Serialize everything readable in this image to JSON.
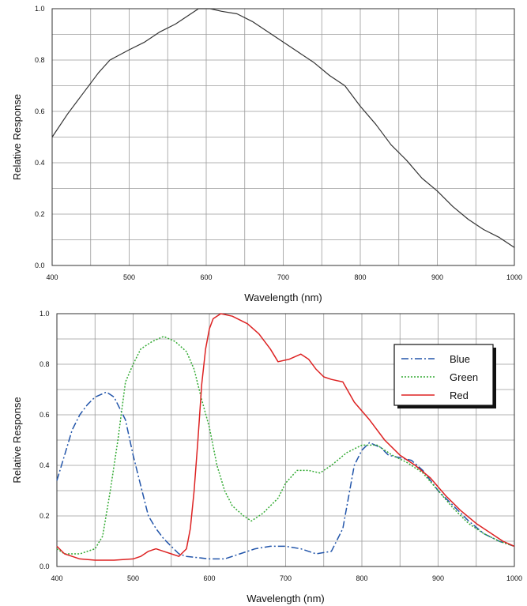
{
  "chart_data": [
    {
      "type": "line",
      "xlabel": "Wavelength (nm)",
      "ylabel": "Relative Response",
      "xlim": [
        400,
        1000
      ],
      "ylim": [
        0,
        1.0
      ],
      "x_ticks": [
        "400",
        "500",
        "600",
        "700",
        "800",
        "900",
        "1000"
      ],
      "y_ticks": [
        "0.0",
        "0.2",
        "0.4",
        "0.6",
        "0.8",
        "1.0"
      ],
      "grid": true,
      "series": [
        {
          "color": "#333333",
          "style": "solid",
          "points": [
            [
              400,
              0.5
            ],
            [
              420,
              0.59
            ],
            [
              440,
              0.67
            ],
            [
              460,
              0.75
            ],
            [
              475,
              0.8
            ],
            [
              500,
              0.84
            ],
            [
              520,
              0.87
            ],
            [
              540,
              0.91
            ],
            [
              560,
              0.94
            ],
            [
              580,
              0.98
            ],
            [
              590,
              1.0
            ],
            [
              605,
              1.0
            ],
            [
              620,
              0.99
            ],
            [
              640,
              0.98
            ],
            [
              660,
              0.95
            ],
            [
              680,
              0.91
            ],
            [
              700,
              0.87
            ],
            [
              720,
              0.83
            ],
            [
              740,
              0.79
            ],
            [
              760,
              0.74
            ],
            [
              780,
              0.7
            ],
            [
              800,
              0.62
            ],
            [
              820,
              0.55
            ],
            [
              840,
              0.47
            ],
            [
              860,
              0.41
            ],
            [
              880,
              0.34
            ],
            [
              900,
              0.29
            ],
            [
              920,
              0.23
            ],
            [
              940,
              0.18
            ],
            [
              960,
              0.14
            ],
            [
              980,
              0.11
            ],
            [
              1000,
              0.07
            ]
          ]
        }
      ]
    },
    {
      "type": "line",
      "xlabel": "Wavelength (nm)",
      "ylabel": "Relative Response",
      "xlim": [
        400,
        1000
      ],
      "ylim": [
        0,
        1.0
      ],
      "x_ticks": [
        "400",
        "500",
        "600",
        "700",
        "800",
        "900",
        "1000"
      ],
      "y_ticks": [
        "0.0",
        "0.2",
        "0.4",
        "0.6",
        "0.8",
        "1.0"
      ],
      "grid": true,
      "legend_position": "top-right",
      "series": [
        {
          "name": "Blue",
          "color": "#2255aa",
          "style": "dashdot",
          "points": [
            [
              400,
              0.34
            ],
            [
              410,
              0.44
            ],
            [
              420,
              0.54
            ],
            [
              430,
              0.6
            ],
            [
              440,
              0.64
            ],
            [
              450,
              0.67
            ],
            [
              465,
              0.69
            ],
            [
              475,
              0.67
            ],
            [
              480,
              0.64
            ],
            [
              490,
              0.58
            ],
            [
              500,
              0.44
            ],
            [
              510,
              0.32
            ],
            [
              520,
              0.2
            ],
            [
              530,
              0.15
            ],
            [
              540,
              0.11
            ],
            [
              560,
              0.05
            ],
            [
              570,
              0.04
            ],
            [
              600,
              0.03
            ],
            [
              620,
              0.03
            ],
            [
              640,
              0.05
            ],
            [
              660,
              0.07
            ],
            [
              680,
              0.08
            ],
            [
              700,
              0.08
            ],
            [
              720,
              0.07
            ],
            [
              740,
              0.05
            ],
            [
              760,
              0.06
            ],
            [
              775,
              0.15
            ],
            [
              790,
              0.4
            ],
            [
              800,
              0.46
            ],
            [
              810,
              0.49
            ],
            [
              825,
              0.47
            ],
            [
              835,
              0.44
            ],
            [
              850,
              0.43
            ],
            [
              865,
              0.42
            ],
            [
              880,
              0.38
            ],
            [
              900,
              0.3
            ],
            [
              920,
              0.24
            ],
            [
              940,
              0.18
            ],
            [
              960,
              0.13
            ],
            [
              980,
              0.1
            ],
            [
              1000,
              0.08
            ]
          ]
        },
        {
          "name": "Green",
          "color": "#33aa33",
          "style": "dotted",
          "points": [
            [
              400,
              0.07
            ],
            [
              410,
              0.05
            ],
            [
              420,
              0.05
            ],
            [
              430,
              0.05
            ],
            [
              450,
              0.07
            ],
            [
              460,
              0.12
            ],
            [
              470,
              0.3
            ],
            [
              480,
              0.5
            ],
            [
              490,
              0.73
            ],
            [
              500,
              0.8
            ],
            [
              510,
              0.86
            ],
            [
              525,
              0.89
            ],
            [
              540,
              0.91
            ],
            [
              555,
              0.89
            ],
            [
              570,
              0.85
            ],
            [
              580,
              0.78
            ],
            [
              590,
              0.66
            ],
            [
              600,
              0.55
            ],
            [
              610,
              0.4
            ],
            [
              620,
              0.3
            ],
            [
              630,
              0.24
            ],
            [
              645,
              0.2
            ],
            [
              655,
              0.18
            ],
            [
              670,
              0.21
            ],
            [
              690,
              0.27
            ],
            [
              700,
              0.33
            ],
            [
              715,
              0.38
            ],
            [
              730,
              0.38
            ],
            [
              745,
              0.37
            ],
            [
              760,
              0.4
            ],
            [
              780,
              0.45
            ],
            [
              800,
              0.48
            ],
            [
              820,
              0.48
            ],
            [
              840,
              0.44
            ],
            [
              860,
              0.41
            ],
            [
              880,
              0.37
            ],
            [
              900,
              0.3
            ],
            [
              920,
              0.23
            ],
            [
              940,
              0.17
            ],
            [
              960,
              0.13
            ],
            [
              980,
              0.1
            ],
            [
              1000,
              0.08
            ]
          ]
        },
        {
          "name": "Red",
          "color": "#dd2222",
          "style": "solid",
          "points": [
            [
              400,
              0.08
            ],
            [
              410,
              0.05
            ],
            [
              420,
              0.04
            ],
            [
              430,
              0.03
            ],
            [
              450,
              0.025
            ],
            [
              475,
              0.025
            ],
            [
              500,
              0.03
            ],
            [
              510,
              0.04
            ],
            [
              520,
              0.06
            ],
            [
              530,
              0.07
            ],
            [
              540,
              0.06
            ],
            [
              550,
              0.05
            ],
            [
              560,
              0.04
            ],
            [
              570,
              0.07
            ],
            [
              575,
              0.15
            ],
            [
              580,
              0.3
            ],
            [
              585,
              0.5
            ],
            [
              590,
              0.72
            ],
            [
              595,
              0.86
            ],
            [
              600,
              0.94
            ],
            [
              605,
              0.98
            ],
            [
              615,
              1.0
            ],
            [
              630,
              0.99
            ],
            [
              650,
              0.96
            ],
            [
              665,
              0.92
            ],
            [
              680,
              0.86
            ],
            [
              690,
              0.81
            ],
            [
              705,
              0.82
            ],
            [
              720,
              0.84
            ],
            [
              730,
              0.82
            ],
            [
              740,
              0.78
            ],
            [
              750,
              0.75
            ],
            [
              760,
              0.74
            ],
            [
              775,
              0.73
            ],
            [
              790,
              0.65
            ],
            [
              810,
              0.58
            ],
            [
              830,
              0.5
            ],
            [
              850,
              0.44
            ],
            [
              870,
              0.4
            ],
            [
              890,
              0.35
            ],
            [
              910,
              0.28
            ],
            [
              930,
              0.22
            ],
            [
              950,
              0.17
            ],
            [
              970,
              0.13
            ],
            [
              985,
              0.1
            ],
            [
              1000,
              0.08
            ]
          ]
        }
      ]
    }
  ]
}
